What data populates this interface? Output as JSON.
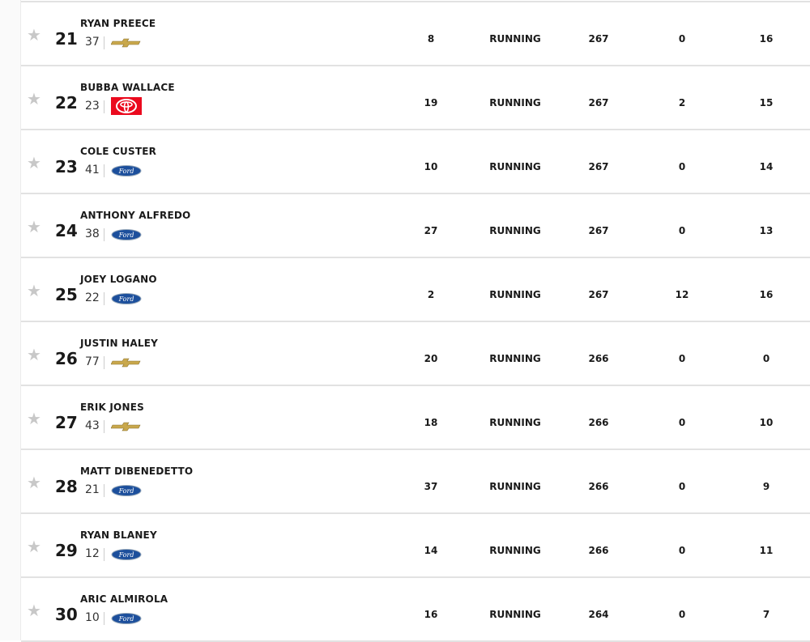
{
  "rows": [
    {
      "pos": "21",
      "driver": "RYAN PREECE",
      "car": "37",
      "make": "chevrolet",
      "start": "8",
      "status": "RUNNING",
      "laps": "267",
      "led": "0",
      "points": "16"
    },
    {
      "pos": "22",
      "driver": "BUBBA WALLACE",
      "car": "23",
      "make": "toyota",
      "start": "19",
      "status": "RUNNING",
      "laps": "267",
      "led": "2",
      "points": "15"
    },
    {
      "pos": "23",
      "driver": "COLE CUSTER",
      "car": "41",
      "make": "ford",
      "start": "10",
      "status": "RUNNING",
      "laps": "267",
      "led": "0",
      "points": "14"
    },
    {
      "pos": "24",
      "driver": "ANTHONY ALFREDO",
      "car": "38",
      "make": "ford",
      "start": "27",
      "status": "RUNNING",
      "laps": "267",
      "led": "0",
      "points": "13"
    },
    {
      "pos": "25",
      "driver": "JOEY LOGANO",
      "car": "22",
      "make": "ford",
      "start": "2",
      "status": "RUNNING",
      "laps": "267",
      "led": "12",
      "points": "16"
    },
    {
      "pos": "26",
      "driver": "JUSTIN HALEY",
      "car": "77",
      "make": "chevrolet",
      "start": "20",
      "status": "RUNNING",
      "laps": "266",
      "led": "0",
      "points": "0"
    },
    {
      "pos": "27",
      "driver": "ERIK JONES",
      "car": "43",
      "make": "chevrolet",
      "start": "18",
      "status": "RUNNING",
      "laps": "266",
      "led": "0",
      "points": "10"
    },
    {
      "pos": "28",
      "driver": "MATT DIBENEDETTO",
      "car": "21",
      "make": "ford",
      "start": "37",
      "status": "RUNNING",
      "laps": "266",
      "led": "0",
      "points": "9"
    },
    {
      "pos": "29",
      "driver": "RYAN BLANEY",
      "car": "12",
      "make": "ford",
      "start": "14",
      "status": "RUNNING",
      "laps": "266",
      "led": "0",
      "points": "11"
    },
    {
      "pos": "30",
      "driver": "ARIC ALMIROLA",
      "car": "10",
      "make": "ford",
      "start": "16",
      "status": "RUNNING",
      "laps": "264",
      "led": "0",
      "points": "7"
    }
  ],
  "colors": {
    "toyota": "#eb0a1e",
    "ford": "#1c4f9c",
    "chevrolet": "#c9a84c"
  }
}
